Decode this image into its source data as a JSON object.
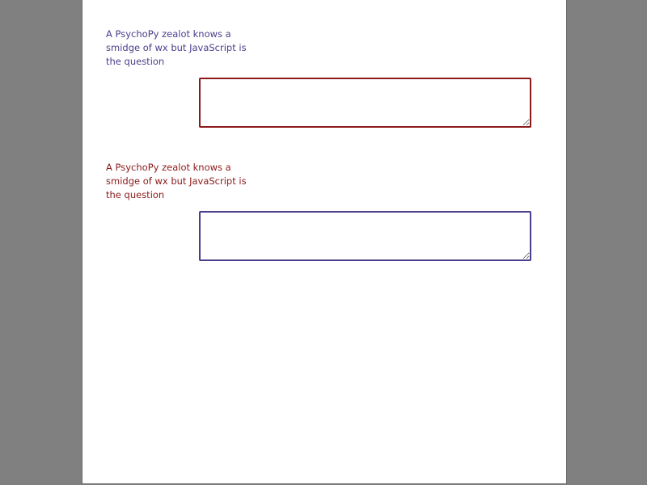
{
  "form": {
    "items": [
      {
        "prompt": "A PsychoPy zealot knows a smidge of wx but JavaScript is the question",
        "response_value": "",
        "prompt_color": "#4a3f8c",
        "box_border_color": "#8b1a1a"
      },
      {
        "prompt": "A PsychoPy zealot knows a smidge of wx but JavaScript is the question",
        "response_value": "",
        "prompt_color": "#8b1a1a",
        "box_border_color": "#4a3f8c"
      }
    ]
  },
  "colors": {
    "background": "#808080",
    "page": "#ffffff"
  }
}
